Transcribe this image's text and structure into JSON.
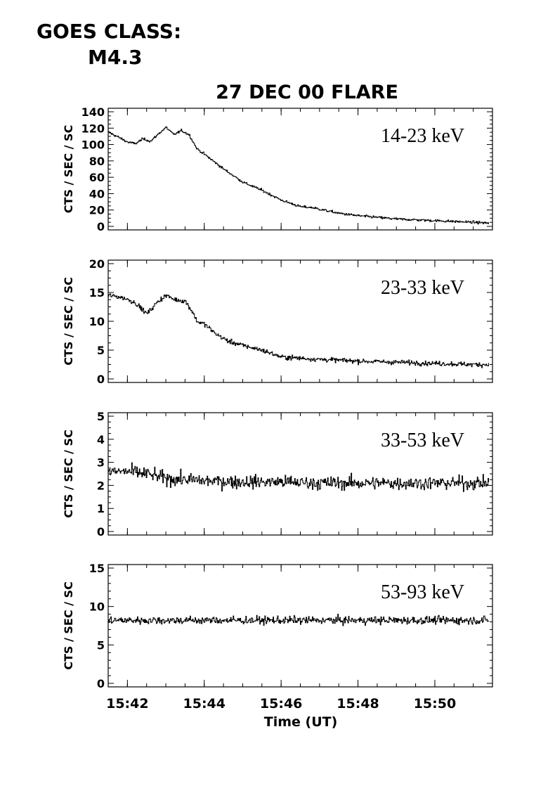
{
  "goes": {
    "label": "GOES CLASS:",
    "value": "M4.3"
  },
  "chart_data": {
    "type": "line",
    "title": "27 DEC 00 FLARE",
    "xlabel": "Time (UT)",
    "x_unit": "minutes UT",
    "xlim": [
      "15:41.5",
      "15:51.5"
    ],
    "x_ticks": [
      "15:42",
      "15:44",
      "15:46",
      "15:48",
      "15:50"
    ],
    "panels": [
      {
        "series_name": "14-23 keV",
        "ylabel": "CTS / SEC / SC",
        "ylim": [
          0,
          140
        ],
        "yticks": [
          "0",
          "20",
          "40",
          "60",
          "80",
          "100",
          "120",
          "140"
        ],
        "x": [
          "15:41.5",
          "15:41.8",
          "15:42.0",
          "15:42.2",
          "15:42.4",
          "15:42.6",
          "15:42.8",
          "15:43.0",
          "15:43.2",
          "15:43.4",
          "15:43.6",
          "15:43.8",
          "15:44.0",
          "15:44.5",
          "15:45.0",
          "15:45.5",
          "15:46.0",
          "15:46.5",
          "15:46.8",
          "15:47.2",
          "15:47.5",
          "15:48.0",
          "15:48.5",
          "15:49.0",
          "15:49.5",
          "15:50.0",
          "15:50.5",
          "15:51.0",
          "15:51.4"
        ],
        "values": [
          115,
          108,
          103,
          101,
          107,
          104,
          113,
          121,
          112,
          117,
          112,
          95,
          88,
          70,
          54,
          44,
          32,
          24,
          23,
          19,
          16,
          13,
          11,
          9,
          8,
          7,
          6,
          5,
          4
        ],
        "noise": 1.5
      },
      {
        "series_name": "23-33 keV",
        "ylabel": "CTS / SEC / SC",
        "ylim": [
          0,
          20
        ],
        "yticks": [
          "0",
          "5",
          "10",
          "15",
          "20"
        ],
        "x": [
          "15:41.5",
          "15:41.8",
          "15:42.0",
          "15:42.2",
          "15:42.5",
          "15:42.8",
          "15:43.0",
          "15:43.2",
          "15:43.5",
          "15:43.7",
          "15:43.8",
          "15:44.0",
          "15:44.3",
          "15:44.6",
          "15:45.0",
          "15:45.5",
          "15:46.0",
          "15:46.5",
          "15:47.0",
          "15:48.0",
          "15:49.0",
          "15:50.0",
          "15:51.0",
          "15:51.4"
        ],
        "values": [
          14.5,
          14.2,
          13.8,
          13.2,
          11.3,
          13.5,
          14.5,
          13.8,
          13.5,
          11.5,
          10.0,
          9.5,
          7.8,
          6.6,
          5.8,
          5.0,
          3.8,
          3.6,
          3.4,
          3.1,
          2.9,
          2.7,
          2.5,
          2.5
        ],
        "noise": 0.4
      },
      {
        "series_name": "33-53 keV",
        "ylabel": "CTS / SEC / SC",
        "ylim": [
          0,
          5
        ],
        "yticks": [
          "0",
          "1",
          "2",
          "3",
          "4",
          "5"
        ],
        "x": [
          "15:41.5",
          "15:42.0",
          "15:42.5",
          "15:43.0",
          "15:43.5",
          "15:44.0",
          "15:45.0",
          "15:46.0",
          "15:47.0",
          "15:48.0",
          "15:49.0",
          "15:50.0",
          "15:51.4"
        ],
        "values": [
          2.6,
          2.6,
          2.5,
          2.3,
          2.25,
          2.2,
          2.15,
          2.15,
          2.1,
          2.1,
          2.1,
          2.1,
          2.1
        ],
        "noise": 0.28
      },
      {
        "series_name": "53-93 keV",
        "ylabel": "CTS / SEC / SC",
        "ylim": [
          0,
          15
        ],
        "yticks": [
          "0",
          "5",
          "10",
          "15"
        ],
        "x": [
          "15:41.5",
          "15:46.0",
          "15:51.4"
        ],
        "values": [
          8.2,
          8.2,
          8.2
        ],
        "noise": 0.5
      }
    ]
  }
}
